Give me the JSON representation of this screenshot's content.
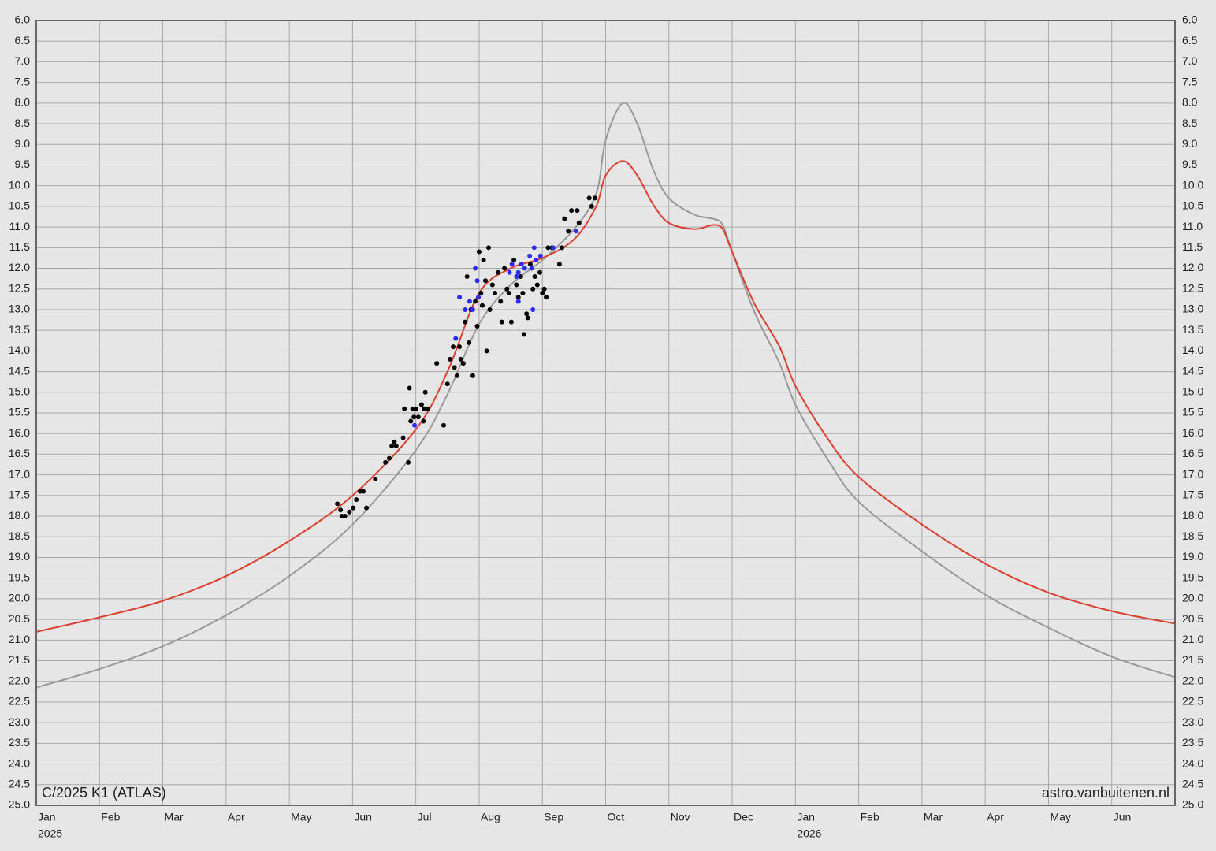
{
  "chart_data": {
    "type": "line",
    "annotations": [
      "C/2025 K1 (ATLAS)",
      "astro.vanbuitenen.nl"
    ],
    "xlim": [
      0,
      18
    ],
    "xticks": [
      {
        "value": 0,
        "label": "Jan"
      },
      {
        "value": 1,
        "label": "Feb"
      },
      {
        "value": 2,
        "label": "Mar"
      },
      {
        "value": 3,
        "label": "Apr"
      },
      {
        "value": 4,
        "label": "May"
      },
      {
        "value": 5,
        "label": "Jun"
      },
      {
        "value": 6,
        "label": "Jul"
      },
      {
        "value": 7,
        "label": "Aug"
      },
      {
        "value": 8,
        "label": "Sep"
      },
      {
        "value": 9,
        "label": "Oct"
      },
      {
        "value": 10,
        "label": "Nov"
      },
      {
        "value": 11,
        "label": "Dec"
      },
      {
        "value": 12,
        "label": "Jan"
      },
      {
        "value": 13,
        "label": "Feb"
      },
      {
        "value": 14,
        "label": "Mar"
      },
      {
        "value": 15,
        "label": "Apr"
      },
      {
        "value": 16,
        "label": "May"
      },
      {
        "value": 17,
        "label": "Jun"
      }
    ],
    "year_labels": [
      {
        "value": 0,
        "label": "2025"
      },
      {
        "value": 12,
        "label": "2026"
      }
    ],
    "ylim": [
      25,
      6
    ],
    "yticks": [
      {
        "value": 6,
        "label": "6.0"
      },
      {
        "value": 6.5,
        "label": "6.5"
      },
      {
        "value": 7,
        "label": "7.0"
      },
      {
        "value": 7.5,
        "label": "7.5"
      },
      {
        "value": 8,
        "label": "8.0"
      },
      {
        "value": 8.5,
        "label": "8.5"
      },
      {
        "value": 9,
        "label": "9.0"
      },
      {
        "value": 9.5,
        "label": "9.5"
      },
      {
        "value": 10,
        "label": "10.0"
      },
      {
        "value": 10.5,
        "label": "10.5"
      },
      {
        "value": 11,
        "label": "11.0"
      },
      {
        "value": 11.5,
        "label": "11.5"
      },
      {
        "value": 12,
        "label": "12.0"
      },
      {
        "value": 12.5,
        "label": "12.5"
      },
      {
        "value": 13,
        "label": "13.0"
      },
      {
        "value": 13.5,
        "label": "13.5"
      },
      {
        "value": 14,
        "label": "14.0"
      },
      {
        "value": 14.5,
        "label": "14.5"
      },
      {
        "value": 15,
        "label": "15.0"
      },
      {
        "value": 15.5,
        "label": "15.5"
      },
      {
        "value": 16,
        "label": "16.0"
      },
      {
        "value": 16.5,
        "label": "16.5"
      },
      {
        "value": 17,
        "label": "17.0"
      },
      {
        "value": 17.5,
        "label": "17.5"
      },
      {
        "value": 18,
        "label": "18.0"
      },
      {
        "value": 18.5,
        "label": "18.5"
      },
      {
        "value": 19,
        "label": "19.0"
      },
      {
        "value": 19.5,
        "label": "19.5"
      },
      {
        "value": 20,
        "label": "20.0"
      },
      {
        "value": 20.5,
        "label": "20.5"
      },
      {
        "value": 21,
        "label": "21.0"
      },
      {
        "value": 21.5,
        "label": "21.5"
      },
      {
        "value": 22,
        "label": "22.0"
      },
      {
        "value": 22.5,
        "label": "22.5"
      },
      {
        "value": 23,
        "label": "23.0"
      },
      {
        "value": 23.5,
        "label": "23.5"
      },
      {
        "value": 24,
        "label": "24.0"
      },
      {
        "value": 24.5,
        "label": "24.5"
      },
      {
        "value": 25,
        "label": "25.0"
      }
    ],
    "grid": true,
    "series": [
      {
        "color": "#999999",
        "style": "line",
        "x": [
          0,
          1,
          2,
          3,
          4,
          5,
          6,
          6.5,
          7,
          7.5,
          8,
          8.5,
          8.85,
          9,
          9.27,
          9.5,
          9.75,
          10,
          10.4,
          10.7,
          10.85,
          11,
          11.35,
          11.75,
          12,
          12.5,
          13,
          14,
          15,
          16,
          17,
          18
        ],
        "values": [
          22.15,
          21.7,
          21.15,
          20.4,
          19.45,
          18.2,
          16.4,
          15.05,
          13.35,
          12.4,
          11.8,
          11.05,
          10.2,
          8.9,
          8.0,
          8.5,
          9.6,
          10.3,
          10.7,
          10.8,
          10.95,
          11.6,
          13.05,
          14.3,
          15.3,
          16.6,
          17.65,
          18.85,
          19.9,
          20.7,
          21.4,
          21.9
        ]
      },
      {
        "color": "#d9402f",
        "style": "line",
        "x": [
          0,
          1,
          2,
          3,
          4,
          5,
          6,
          6.5,
          7,
          7.5,
          8,
          8.5,
          8.85,
          9,
          9.27,
          9.5,
          9.75,
          10,
          10.4,
          10.7,
          10.85,
          11,
          11.35,
          11.75,
          12,
          12.5,
          13,
          14,
          15,
          16,
          17,
          18
        ],
        "values": [
          20.8,
          20.45,
          20.05,
          19.45,
          18.6,
          17.5,
          15.9,
          14.5,
          12.6,
          12.0,
          11.75,
          11.3,
          10.5,
          9.75,
          9.4,
          9.75,
          10.45,
          10.9,
          11.05,
          10.95,
          11.05,
          11.6,
          12.85,
          13.9,
          14.85,
          16.1,
          17.05,
          18.2,
          19.15,
          19.85,
          20.3,
          20.6
        ]
      },
      {
        "color": "#000000",
        "style": "points",
        "x": [
          4.76,
          4.81,
          4.83,
          4.88,
          4.95,
          5.01,
          5.06,
          5.12,
          5.17,
          5.22,
          5.36,
          5.52,
          5.58,
          5.62,
          5.66,
          5.69,
          5.8,
          5.82,
          5.88,
          5.9,
          5.92,
          5.95,
          5.97,
          6.0,
          6.04,
          6.09,
          6.12,
          6.13,
          6.15,
          6.19,
          6.33,
          6.44,
          6.5,
          6.54,
          6.59,
          6.61,
          6.65,
          6.69,
          6.71,
          6.75,
          6.78,
          6.81,
          6.84,
          6.87,
          6.9,
          6.94,
          6.97,
          7.0,
          7.03,
          7.05,
          7.07,
          7.1,
          7.12,
          7.15,
          7.17,
          7.21,
          7.25,
          7.3,
          7.34,
          7.36,
          7.4,
          7.44,
          7.47,
          7.51,
          7.55,
          7.59,
          7.62,
          7.66,
          7.69,
          7.71,
          7.75,
          7.77,
          7.81,
          7.85,
          7.88,
          7.92,
          7.96,
          8.0,
          8.03,
          8.06,
          8.09,
          8.15,
          8.27,
          8.31,
          8.35,
          8.41,
          8.46,
          8.55,
          8.58,
          8.74,
          8.78,
          8.83
        ],
        "values": [
          17.7,
          17.85,
          18.0,
          18.0,
          17.9,
          17.8,
          17.6,
          17.4,
          17.4,
          17.8,
          17.1,
          16.7,
          16.6,
          16.3,
          16.2,
          16.3,
          16.1,
          15.4,
          16.7,
          14.9,
          15.7,
          15.4,
          15.6,
          15.4,
          15.6,
          15.3,
          15.7,
          15.4,
          15.0,
          15.4,
          14.3,
          15.8,
          14.8,
          14.2,
          13.9,
          14.4,
          14.6,
          13.9,
          14.2,
          14.3,
          13.3,
          12.2,
          13.8,
          13.0,
          14.6,
          12.8,
          13.4,
          11.6,
          12.6,
          12.9,
          11.8,
          12.3,
          14.0,
          11.5,
          13.0,
          12.4,
          12.6,
          12.1,
          12.8,
          13.3,
          12.0,
          12.5,
          12.6,
          13.3,
          11.8,
          12.4,
          12.7,
          12.2,
          12.6,
          13.6,
          13.1,
          13.2,
          11.9,
          12.5,
          12.2,
          12.4,
          12.1,
          12.6,
          12.5,
          12.7,
          11.5,
          11.5,
          11.9,
          11.5,
          10.8,
          11.1,
          10.6,
          10.6,
          10.9,
          10.3,
          10.5,
          10.3
        ]
      },
      {
        "color": "#2b2bff",
        "style": "points",
        "x": [
          5.98,
          6.63,
          6.69,
          6.78,
          6.85,
          6.9,
          6.94,
          6.97,
          6.99,
          7.48,
          7.52,
          7.59,
          7.62,
          7.62,
          7.67,
          7.72,
          7.8,
          7.83,
          7.85,
          7.87,
          7.9,
          7.97,
          8.17,
          8.53
        ],
        "values": [
          15.8,
          13.7,
          12.7,
          13.0,
          12.8,
          13.0,
          12.0,
          12.3,
          12.7,
          12.1,
          11.9,
          12.2,
          12.1,
          12.8,
          11.9,
          12.0,
          11.7,
          12.0,
          13.0,
          11.5,
          11.8,
          11.7,
          11.5,
          11.1
        ]
      }
    ]
  }
}
